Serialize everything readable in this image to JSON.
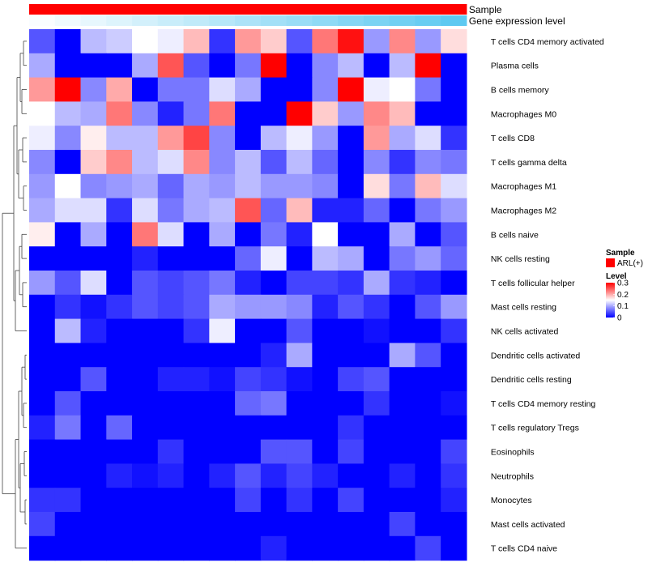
{
  "chart_data": {
    "type": "heatmap",
    "title": "",
    "annotations": [
      {
        "name": "Sample",
        "color": "#ff0000"
      },
      {
        "name": "Gene expression level",
        "values": [
          0.02,
          0.06,
          0.1,
          0.14,
          0.18,
          0.22,
          0.26,
          0.3,
          0.34,
          0.38,
          0.42,
          0.46,
          0.5,
          0.54,
          0.58,
          0.62,
          0.66
        ]
      }
    ],
    "rows": [
      "T cells CD4 memory activated",
      "Plasma cells",
      "B cells memory",
      "Macrophages M0",
      "T cells CD8",
      "T cells gamma delta",
      "Macrophages M1",
      "Macrophages M2",
      "B cells naive",
      "NK cells resting",
      "T cells follicular helper",
      "Mast cells resting",
      "NK cells activated",
      "Dendritic cells activated",
      "Dendritic cells resting",
      "T cells CD4 memory resting",
      "T cells regulatory  Tregs",
      "Eosinophils",
      "Neutrophils",
      "Monocytes",
      "Mast cells activated",
      "T cells CD4 naive"
    ],
    "values": [
      [
        0.05,
        0.0,
        0.11,
        0.12,
        0.15,
        0.14,
        0.19,
        0.03,
        0.21,
        0.18,
        0.05,
        0.23,
        0.29,
        0.09,
        0.22,
        0.09,
        0.17
      ],
      [
        0.1,
        0.0,
        0.0,
        0.0,
        0.1,
        0.25,
        0.05,
        0.0,
        0.07,
        0.3,
        0.0,
        0.08,
        0.11,
        0.0,
        0.11,
        0.3,
        0.0
      ],
      [
        0.21,
        0.3,
        0.08,
        0.2,
        0.0,
        0.07,
        0.07,
        0.13,
        0.1,
        0.0,
        0.0,
        0.08,
        0.3,
        0.14,
        0.15,
        0.07,
        0.0
      ],
      [
        0.15,
        0.11,
        0.1,
        0.23,
        0.08,
        0.02,
        0.07,
        0.23,
        0.0,
        0.0,
        0.3,
        0.18,
        0.09,
        0.22,
        0.19,
        0.0,
        0.0
      ],
      [
        0.14,
        0.08,
        0.16,
        0.11,
        0.11,
        0.21,
        0.26,
        0.08,
        0.0,
        0.11,
        0.14,
        0.09,
        0.0,
        0.21,
        0.1,
        0.13,
        0.03
      ],
      [
        0.08,
        0.0,
        0.18,
        0.22,
        0.11,
        0.13,
        0.22,
        0.08,
        0.11,
        0.05,
        0.11,
        0.06,
        0.0,
        0.08,
        0.03,
        0.08,
        0.07
      ],
      [
        0.09,
        0.15,
        0.08,
        0.09,
        0.1,
        0.06,
        0.1,
        0.09,
        0.11,
        0.09,
        0.09,
        0.08,
        0.0,
        0.17,
        0.07,
        0.19,
        0.13
      ],
      [
        0.1,
        0.13,
        0.13,
        0.03,
        0.13,
        0.07,
        0.1,
        0.11,
        0.25,
        0.06,
        0.19,
        0.02,
        0.02,
        0.06,
        0.0,
        0.07,
        0.09
      ],
      [
        0.16,
        0.0,
        0.1,
        0.0,
        0.23,
        0.13,
        0.0,
        0.1,
        0.0,
        0.07,
        0.02,
        0.15,
        0.0,
        0.0,
        0.1,
        0.0,
        0.05
      ],
      [
        0.0,
        0.0,
        0.0,
        0.0,
        0.02,
        0.0,
        0.0,
        0.0,
        0.06,
        0.14,
        0.0,
        0.11,
        0.1,
        0.0,
        0.07,
        0.09,
        0.06
      ],
      [
        0.09,
        0.05,
        0.13,
        0.0,
        0.05,
        0.04,
        0.05,
        0.07,
        0.02,
        0.0,
        0.04,
        0.04,
        0.03,
        0.1,
        0.03,
        0.02,
        0.0
      ],
      [
        0.0,
        0.03,
        0.01,
        0.03,
        0.05,
        0.04,
        0.05,
        0.1,
        0.09,
        0.09,
        0.08,
        0.02,
        0.05,
        0.03,
        0.0,
        0.05,
        0.09
      ],
      [
        0.0,
        0.11,
        0.02,
        0.0,
        0.0,
        0.0,
        0.03,
        0.14,
        0.0,
        0.0,
        0.05,
        0.0,
        0.0,
        0.01,
        0.0,
        0.0,
        0.03
      ],
      [
        0.0,
        0.0,
        0.0,
        0.0,
        0.0,
        0.0,
        0.0,
        0.0,
        0.0,
        0.02,
        0.1,
        0.0,
        0.0,
        0.0,
        0.1,
        0.05,
        0.0
      ],
      [
        0.0,
        0.0,
        0.05,
        0.0,
        0.0,
        0.02,
        0.02,
        0.01,
        0.04,
        0.03,
        0.01,
        0.0,
        0.04,
        0.05,
        0.0,
        0.0,
        0.0
      ],
      [
        0.0,
        0.05,
        0.0,
        0.0,
        0.0,
        0.0,
        0.0,
        0.0,
        0.06,
        0.07,
        0.0,
        0.0,
        0.0,
        0.03,
        0.0,
        0.0,
        0.01
      ],
      [
        0.02,
        0.07,
        0.0,
        0.06,
        0.0,
        0.0,
        0.0,
        0.0,
        0.0,
        0.0,
        0.0,
        0.0,
        0.03,
        0.0,
        0.0,
        0.0,
        0.0
      ],
      [
        0.0,
        0.0,
        0.0,
        0.0,
        0.0,
        0.03,
        0.0,
        0.0,
        0.0,
        0.05,
        0.05,
        0.0,
        0.04,
        0.0,
        0.0,
        0.0,
        0.04
      ],
      [
        0.0,
        0.0,
        0.0,
        0.02,
        0.01,
        0.02,
        0.0,
        0.02,
        0.05,
        0.02,
        0.04,
        0.02,
        0.0,
        0.0,
        0.02,
        0.0,
        0.03
      ],
      [
        0.03,
        0.03,
        0.0,
        0.0,
        0.0,
        0.0,
        0.0,
        0.0,
        0.04,
        0.0,
        0.03,
        0.0,
        0.04,
        0.0,
        0.0,
        0.0,
        0.02
      ],
      [
        0.04,
        0.0,
        0.0,
        0.0,
        0.0,
        0.0,
        0.0,
        0.0,
        0.0,
        0.0,
        0.0,
        0.0,
        0.0,
        0.0,
        0.04,
        0.0,
        0.0
      ],
      [
        0.0,
        0.0,
        0.0,
        0.0,
        0.0,
        0.0,
        0.0,
        0.0,
        0.0,
        0.02,
        0.0,
        0.0,
        0.0,
        0.0,
        0.0,
        0.04,
        0.0
      ]
    ],
    "color_scale": {
      "low": "#0000ff",
      "mid": "#ffffff",
      "high": "#ff0000",
      "domain": [
        0,
        0.15,
        0.3
      ]
    },
    "legend": {
      "sample_title": "Sample",
      "sample_entries": [
        {
          "label": "ARL(+)",
          "color": "#ff0000"
        }
      ],
      "level_title": "Level",
      "level_ticks": [
        0.3,
        0.2,
        0.1,
        0
      ],
      "level_tick_labels": [
        "0.3",
        "0.2",
        "0.1",
        "0"
      ]
    },
    "dendrogram": "rows"
  }
}
